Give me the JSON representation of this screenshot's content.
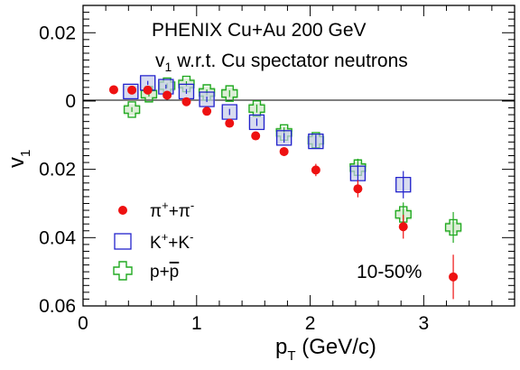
{
  "chart_data": {
    "type": "scatter",
    "title": "PHENIX Cu+Au 200 GeV",
    "subtitle_main": "v",
    "subtitle_sub": "1",
    "subtitle_rest": " w.r.t. Cu spectator neutrons",
    "centrality": "10-50%",
    "xlabel_main": "p",
    "xlabel_sub": "T",
    "xlabel_rest": " (GeV/c)",
    "ylabel_main": "v",
    "ylabel_sub": "1",
    "xlim": [
      0,
      3.8
    ],
    "ylim": [
      -0.06,
      0.028
    ],
    "xticks": [
      0,
      1,
      2,
      3
    ],
    "xtick_labels": [
      "0",
      "1",
      "2",
      "3"
    ],
    "yticks": [
      0.02,
      0,
      -0.02,
      -0.04,
      -0.06
    ],
    "ytick_labels": [
      "0.02",
      "0",
      "0.02",
      "0.04",
      "0.06"
    ],
    "zero_line": true,
    "grid": false,
    "legend_position": "bottom-left",
    "series": [
      {
        "name_parts": [
          "π",
          "+",
          "+π",
          "-"
        ],
        "marker": "circle",
        "color": "#ee1111",
        "x": [
          0.27,
          0.43,
          0.57,
          0.74,
          0.91,
          1.09,
          1.29,
          1.52,
          1.77,
          2.05,
          2.42,
          2.82,
          3.26
        ],
        "y": [
          0.0033,
          0.0032,
          0.0032,
          0.0017,
          -0.0002,
          -0.003,
          -0.0065,
          -0.0102,
          -0.0148,
          -0.0202,
          -0.0257,
          -0.0368,
          -0.0515
        ],
        "err": [
          0.0003,
          0.0003,
          0.0003,
          0.0004,
          0.0005,
          0.0006,
          0.0008,
          0.001,
          0.0013,
          0.0018,
          0.0025,
          0.0035,
          0.0065
        ]
      },
      {
        "name_parts": [
          "K",
          "+",
          "+K",
          "-"
        ],
        "marker": "open-square",
        "color": "#2222cc",
        "x": [
          0.42,
          0.57,
          0.73,
          0.91,
          1.09,
          1.29,
          1.53,
          1.77,
          2.05,
          2.42,
          2.82
        ],
        "y": [
          0.0028,
          0.0053,
          0.0042,
          0.0028,
          0.0005,
          -0.0032,
          -0.0062,
          -0.0108,
          -0.0118,
          -0.0212,
          -0.0245
        ],
        "err": [
          0.0005,
          0.0006,
          0.0006,
          0.0007,
          0.0008,
          0.0009,
          0.0011,
          0.0014,
          0.0018,
          0.0025,
          0.004
        ]
      },
      {
        "name_parts": [
          "p+",
          "p"
        ],
        "marker": "open-cross",
        "color": "#22aa22",
        "x": [
          0.43,
          0.58,
          0.74,
          0.91,
          1.09,
          1.29,
          1.53,
          1.77,
          2.05,
          2.42,
          2.82,
          3.26
        ],
        "y": [
          -0.0025,
          0.002,
          0.0045,
          0.005,
          0.0025,
          0.0022,
          -0.0022,
          -0.0092,
          -0.0115,
          -0.0195,
          -0.0332,
          -0.037
        ],
        "err": [
          0.0007,
          0.0007,
          0.0007,
          0.0008,
          0.0009,
          0.001,
          0.0012,
          0.0015,
          0.0019,
          0.0026,
          0.0035,
          0.0045
        ]
      }
    ]
  }
}
